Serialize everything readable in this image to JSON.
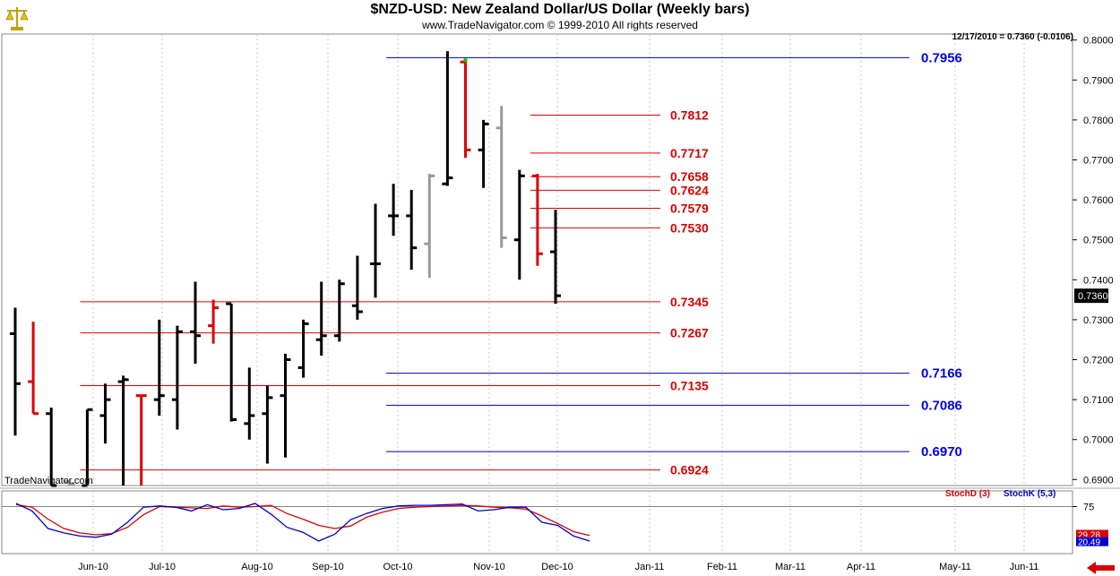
{
  "header": {
    "title": "$NZD-USD:  New Zealand Dollar/US Dollar  (Weekly bars)",
    "subtitle": "www.TradeNavigator.com © 1999-2010 All rights reserved",
    "readout": "12/17/2010 = 0.7360 (-0.0106)",
    "watermark": "TradeNavigator.com",
    "logo_icon": "balance-scale-icon"
  },
  "chart_data": [
    {
      "type": "ohlc",
      "title": "$NZD-USD:  New Zealand Dollar/US Dollar  (Weekly bars)",
      "ylim": [
        0.6885,
        0.8015
      ],
      "y_ticks": [
        "0.8000",
        "0.7900",
        "0.7800",
        "0.7700",
        "0.7600",
        "0.7500",
        "0.7400",
        "0.7300",
        "0.7200",
        "0.7100",
        "0.7000",
        "0.6900"
      ],
      "x_months": [
        "Jun-10",
        "Jul-10",
        "Aug-10",
        "Sep-10",
        "Oct-10",
        "Nov-10",
        "Dec-10",
        "Jan-11",
        "Feb-11",
        "Mar-11",
        "Apr-11",
        "May-11",
        "Jun-11"
      ],
      "last_price_label": "0.7360",
      "bars": [
        {
          "o": 0.7265,
          "h": 0.733,
          "l": 0.701,
          "c": 0.714,
          "color": "#000000"
        },
        {
          "o": 0.7145,
          "h": 0.7295,
          "l": 0.7065,
          "c": 0.7065,
          "color": "#dd0000"
        },
        {
          "o": 0.7065,
          "h": 0.708,
          "l": 0.6885,
          "c": 0.6885,
          "color": "#000000"
        },
        {
          "o": 0.6895,
          "h": 0.6895,
          "l": 0.6885,
          "c": 0.689,
          "color": "#999999"
        },
        {
          "o": 0.6885,
          "h": 0.7075,
          "l": 0.6885,
          "c": 0.7075,
          "color": "#000000"
        },
        {
          "o": 0.706,
          "h": 0.714,
          "l": 0.699,
          "c": 0.71,
          "color": "#000000"
        },
        {
          "o": 0.7145,
          "h": 0.716,
          "l": 0.6885,
          "c": 0.715,
          "color": "#000000"
        },
        {
          "o": 0.711,
          "h": 0.711,
          "l": 0.6885,
          "c": 0.711,
          "color": "#dd0000"
        },
        {
          "o": 0.71,
          "h": 0.73,
          "l": 0.706,
          "c": 0.711,
          "color": "#000000"
        },
        {
          "o": 0.71,
          "h": 0.7285,
          "l": 0.7025,
          "c": 0.727,
          "color": "#000000"
        },
        {
          "o": 0.727,
          "h": 0.7395,
          "l": 0.719,
          "c": 0.726,
          "color": "#000000"
        },
        {
          "o": 0.7285,
          "h": 0.735,
          "l": 0.724,
          "c": 0.733,
          "color": "#dd0000"
        },
        {
          "o": 0.734,
          "h": 0.734,
          "l": 0.7045,
          "c": 0.705,
          "color": "#000000"
        },
        {
          "o": 0.704,
          "h": 0.718,
          "l": 0.7,
          "c": 0.706,
          "color": "#000000"
        },
        {
          "o": 0.7065,
          "h": 0.7135,
          "l": 0.694,
          "c": 0.7105,
          "color": "#000000"
        },
        {
          "o": 0.711,
          "h": 0.7215,
          "l": 0.6955,
          "c": 0.72,
          "color": "#000000"
        },
        {
          "o": 0.718,
          "h": 0.73,
          "l": 0.7155,
          "c": 0.729,
          "color": "#000000"
        },
        {
          "o": 0.725,
          "h": 0.7395,
          "l": 0.721,
          "c": 0.726,
          "color": "#000000"
        },
        {
          "o": 0.726,
          "h": 0.74,
          "l": 0.7245,
          "c": 0.739,
          "color": "#000000"
        },
        {
          "o": 0.7335,
          "h": 0.746,
          "l": 0.73,
          "c": 0.732,
          "color": "#000000"
        },
        {
          "o": 0.744,
          "h": 0.759,
          "l": 0.7355,
          "c": 0.744,
          "color": "#000000"
        },
        {
          "o": 0.756,
          "h": 0.764,
          "l": 0.751,
          "c": 0.756,
          "color": "#000000"
        },
        {
          "o": 0.756,
          "h": 0.7625,
          "l": 0.7425,
          "c": 0.748,
          "color": "#000000"
        },
        {
          "o": 0.749,
          "h": 0.7665,
          "l": 0.7405,
          "c": 0.766,
          "color": "#999999"
        },
        {
          "o": 0.764,
          "h": 0.7972,
          "l": 0.7635,
          "c": 0.7655,
          "color": "#000000"
        },
        {
          "o": 0.7945,
          "h": 0.7945,
          "l": 0.7705,
          "c": 0.7725,
          "color": "#dd0000"
        },
        {
          "o": 0.7725,
          "h": 0.78,
          "l": 0.763,
          "c": 0.779,
          "color": "#000000"
        },
        {
          "o": 0.778,
          "h": 0.7835,
          "l": 0.748,
          "c": 0.7505,
          "color": "#999999"
        },
        {
          "o": 0.75,
          "h": 0.7675,
          "l": 0.74,
          "c": 0.766,
          "color": "#000000"
        },
        {
          "o": 0.766,
          "h": 0.7665,
          "l": 0.7435,
          "c": 0.7465,
          "color": "#dd0000"
        },
        {
          "o": 0.747,
          "h": 0.7575,
          "l": 0.734,
          "c": 0.736,
          "color": "#000000"
        }
      ],
      "levels": [
        {
          "value": 0.7956,
          "label": "0.7956",
          "color": "#0000aa",
          "start": 21
        },
        {
          "value": 0.7812,
          "label": "0.7812",
          "color": "#dd0000",
          "start": 29
        },
        {
          "value": 0.7717,
          "label": "0.7717",
          "color": "#dd0000",
          "start": 29
        },
        {
          "value": 0.7658,
          "label": "0.7658",
          "color": "#dd0000",
          "start": 29
        },
        {
          "value": 0.7624,
          "label": "0.7624",
          "color": "#dd0000",
          "start": 29
        },
        {
          "value": 0.7579,
          "label": "0.7579",
          "color": "#dd0000",
          "start": 29
        },
        {
          "value": 0.753,
          "label": "0.7530",
          "color": "#dd0000",
          "start": 29
        },
        {
          "value": 0.7345,
          "label": "0.7345",
          "color": "#dd0000",
          "start": 4
        },
        {
          "value": 0.7267,
          "label": "0.7267",
          "color": "#dd0000",
          "start": 4
        },
        {
          "value": 0.7166,
          "label": "0.7166",
          "color": "#0000aa",
          "start": 21
        },
        {
          "value": 0.7135,
          "label": "0.7135",
          "color": "#dd0000",
          "start": 4
        },
        {
          "value": 0.7086,
          "label": "0.7086",
          "color": "#0000aa",
          "start": 21
        },
        {
          "value": 0.697,
          "label": "0.6970",
          "color": "#0000aa",
          "start": 21
        },
        {
          "value": 0.6924,
          "label": "0.6924",
          "color": "#dd0000",
          "start": 4
        }
      ]
    },
    {
      "type": "line",
      "ylim": [
        0,
        100
      ],
      "y_ticks": [
        "75"
      ],
      "legend": [
        "StochD (3)",
        "StochK (5,3)"
      ],
      "last_values": [
        "29.28",
        "20.49"
      ],
      "series": [
        {
          "name": "StochD (3)",
          "color": "#dd0000",
          "values": [
            78,
            74,
            55,
            40,
            33,
            30,
            32,
            42,
            62,
            75,
            74,
            73,
            72,
            76,
            74,
            75,
            77,
            64,
            55,
            45,
            40,
            44,
            58,
            66,
            72,
            74,
            75,
            76,
            77,
            76,
            74,
            73,
            71,
            60,
            48,
            35,
            29
          ]
        },
        {
          "name": "StochK (5,3)",
          "color": "#0000cc",
          "values": [
            80,
            68,
            40,
            33,
            28,
            26,
            31,
            50,
            74,
            76,
            74,
            68,
            78,
            70,
            72,
            80,
            63,
            42,
            34,
            20,
            31,
            54,
            64,
            72,
            76,
            77,
            77,
            78,
            79,
            68,
            70,
            74,
            74,
            50,
            45,
            28,
            20
          ]
        }
      ]
    }
  ]
}
